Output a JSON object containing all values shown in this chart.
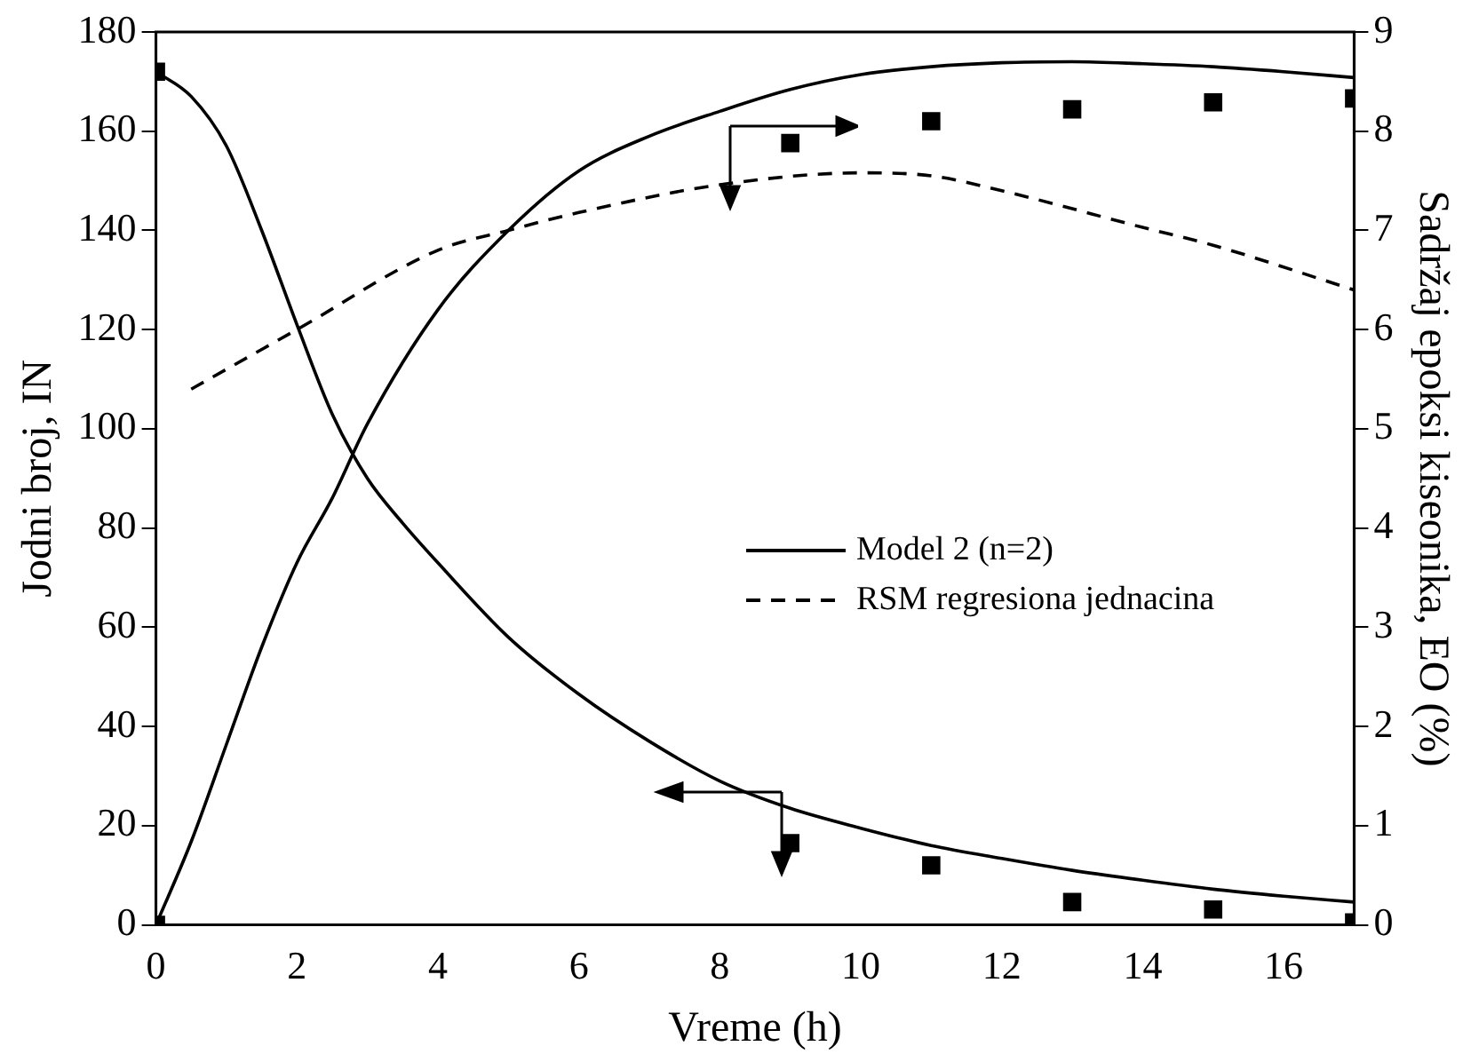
{
  "chart_data": {
    "type": "line",
    "xlabel": "Vreme (h)",
    "ylabel": "Jodni broj, IN",
    "y2label": "Sadržaj epoksi kiseonika, EO (%)",
    "xlim": [
      0,
      17
    ],
    "xticks": [
      0,
      2,
      4,
      6,
      8,
      10,
      12,
      14,
      16
    ],
    "ylim": [
      0,
      180
    ],
    "yticks": [
      0,
      20,
      40,
      60,
      80,
      100,
      120,
      140,
      160,
      180
    ],
    "y2lim": [
      0,
      9
    ],
    "y2ticks": [
      0,
      1,
      2,
      3,
      4,
      5,
      6,
      7,
      8,
      9
    ],
    "grid": false,
    "legend": "center",
    "series": [
      {
        "name": "Model 2 (n=2)",
        "color": "#000000",
        "line_style": "solid",
        "marker": "none",
        "x": [
          0,
          0.5,
          1,
          1.5,
          2,
          2.5,
          3,
          3.5,
          4,
          5,
          6,
          7,
          8,
          9,
          10,
          11,
          12,
          13,
          14,
          15,
          16,
          17
        ],
        "values": [
          172,
          167,
          157,
          140,
          121,
          103,
          90,
          81,
          73,
          58,
          46.5,
          37,
          29,
          23.5,
          19.5,
          16,
          13.4,
          11,
          9,
          7.2,
          5.8,
          4.6
        ]
      },
      {
        "color": "#000000",
        "line_style": "solid",
        "marker": "none",
        "axis": "y2",
        "x": [
          0,
          0.5,
          1,
          1.5,
          2,
          2.5,
          3,
          4,
          5,
          6,
          7,
          8,
          9,
          10,
          11,
          12,
          13,
          14,
          15,
          16,
          17
        ],
        "values": [
          0,
          0.84,
          1.82,
          2.8,
          3.65,
          4.3,
          5.05,
          6.2,
          7.0,
          7.6,
          7.95,
          8.2,
          8.42,
          8.57,
          8.65,
          8.69,
          8.7,
          8.68,
          8.65,
          8.6,
          8.54
        ]
      },
      {
        "name": "RSM regresiona jednacina",
        "color": "#000000",
        "line_style": "dashed",
        "marker": "none",
        "axis": "y2",
        "x": [
          0.5,
          2,
          4,
          5,
          6,
          8,
          10,
          11,
          12,
          14,
          15,
          17
        ],
        "values": [
          5.4,
          6.0,
          6.8,
          7.0,
          7.18,
          7.46,
          7.58,
          7.55,
          7.4,
          7.03,
          6.85,
          6.4
        ]
      },
      {
        "type": "scatter",
        "color": "#000000",
        "marker": "square",
        "x": [
          0,
          9,
          11,
          13,
          15,
          17
        ],
        "values": [
          172,
          16.5,
          12,
          4.6,
          3.1,
          0.5
        ]
      },
      {
        "type": "scatter",
        "color": "#000000",
        "marker": "square",
        "axis": "y2",
        "x": [
          0,
          9,
          11,
          13,
          15,
          17
        ],
        "values": [
          0,
          7.88,
          8.1,
          8.22,
          8.29,
          8.33
        ]
      }
    ]
  }
}
